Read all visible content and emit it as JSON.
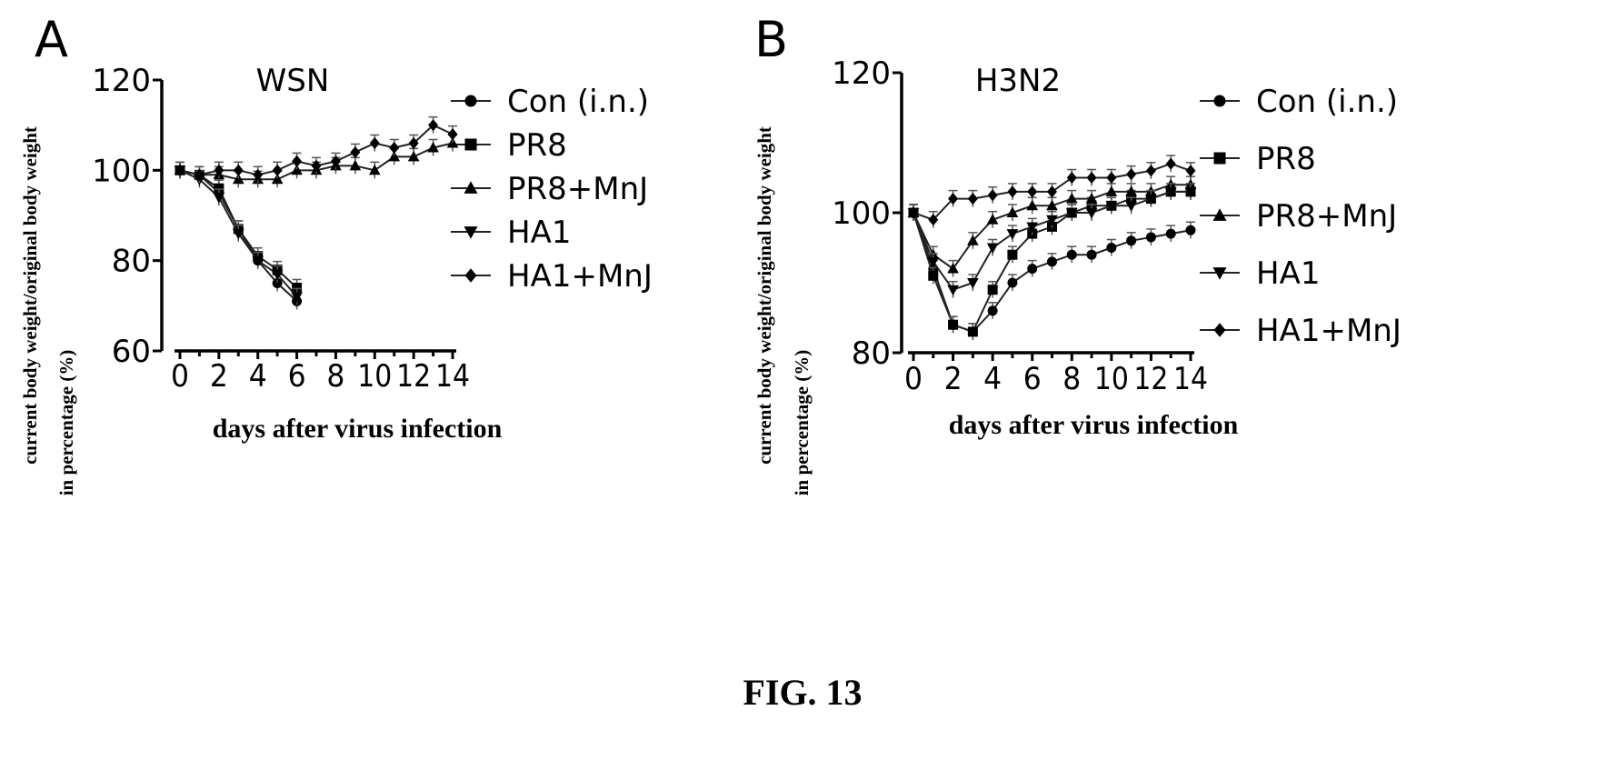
{
  "figure_caption": "FIG. 13",
  "chart_data": [
    {
      "type": "line",
      "panel_label": "A",
      "title": "WSN",
      "xlabel": "days after virus infection",
      "ylabel": [
        "current body weight/original body weight",
        "in percentage (%)"
      ],
      "xlim": [
        0,
        14
      ],
      "ylim": [
        60,
        120
      ],
      "x_ticks": [
        0,
        2,
        4,
        6,
        8,
        10,
        12,
        14
      ],
      "x_tick_labels": [
        "0",
        "2",
        "4",
        "6",
        "8",
        "10",
        "12",
        "14"
      ],
      "y_ticks": [
        60,
        80,
        100,
        120
      ],
      "y_tick_labels": [
        "60",
        "80",
        "100",
        "120"
      ],
      "legend": "right",
      "series": [
        {
          "name": "Con (i.n.)",
          "marker": "circle",
          "x": [
            0,
            1,
            2,
            3,
            4,
            5,
            6
          ],
          "y": [
            100,
            99,
            95,
            87,
            80,
            75,
            71
          ]
        },
        {
          "name": "PR8",
          "marker": "square",
          "x": [
            0,
            1,
            2,
            3,
            4,
            5,
            6
          ],
          "y": [
            100,
            99,
            96,
            87,
            81,
            78,
            74
          ]
        },
        {
          "name": "PR8+MnJ",
          "marker": "triangle-up",
          "x": [
            0,
            1,
            2,
            3,
            4,
            5,
            6,
            7,
            8,
            9,
            10,
            11,
            12,
            13,
            14
          ],
          "y": [
            100,
            99,
            99,
            98,
            98,
            98,
            100,
            100,
            101,
            101,
            100,
            103,
            103,
            105,
            106
          ]
        },
        {
          "name": "HA1",
          "marker": "triangle-down",
          "x": [
            0,
            1,
            2,
            3,
            4,
            5,
            6
          ],
          "y": [
            100,
            98,
            94,
            86,
            80,
            77,
            72
          ]
        },
        {
          "name": "HA1+MnJ",
          "marker": "diamond",
          "x": [
            0,
            1,
            2,
            3,
            4,
            5,
            6,
            7,
            8,
            9,
            10,
            11,
            12,
            13,
            14
          ],
          "y": [
            100,
            99,
            100,
            100,
            99,
            100,
            102,
            101,
            102,
            104,
            106,
            105,
            106,
            110,
            108
          ]
        }
      ]
    },
    {
      "type": "line",
      "panel_label": "B",
      "title": "H3N2",
      "xlabel": "days after virus infection",
      "ylabel": [
        "current body weight/original body weight",
        "in percentage (%)"
      ],
      "xlim": [
        0,
        14
      ],
      "ylim": [
        80,
        120
      ],
      "x_ticks": [
        0,
        2,
        4,
        6,
        8,
        10,
        12,
        14
      ],
      "x_tick_labels": [
        "0",
        "2",
        "4",
        "6",
        "8",
        "10",
        "12",
        "14"
      ],
      "y_ticks": [
        80,
        100,
        120
      ],
      "y_tick_labels": [
        "80",
        "100",
        "120"
      ],
      "legend": "right",
      "series": [
        {
          "name": "Con (i.n.)",
          "marker": "circle",
          "x": [
            0,
            1,
            2,
            3,
            4,
            5,
            6,
            7,
            8,
            9,
            10,
            11,
            12,
            13,
            14
          ],
          "y": [
            100,
            92,
            84,
            83,
            86,
            90,
            92,
            93,
            94,
            94,
            95,
            96,
            96.5,
            97,
            97.5
          ]
        },
        {
          "name": "PR8",
          "marker": "square",
          "x": [
            0,
            1,
            2,
            3,
            4,
            5,
            6,
            7,
            8,
            9,
            10,
            11,
            12,
            13,
            14
          ],
          "y": [
            100,
            91,
            84,
            83,
            89,
            94,
            97,
            98,
            100,
            101,
            101,
            102,
            102,
            103,
            103
          ]
        },
        {
          "name": "PR8+MnJ",
          "marker": "triangle-up",
          "x": [
            0,
            1,
            2,
            3,
            4,
            5,
            6,
            7,
            8,
            9,
            10,
            11,
            12,
            13,
            14
          ],
          "y": [
            100,
            94,
            92,
            96,
            99,
            100,
            101,
            101,
            102,
            102,
            103,
            103,
            103,
            104,
            104
          ]
        },
        {
          "name": "HA1",
          "marker": "triangle-down",
          "x": [
            0,
            1,
            2,
            3,
            4,
            5,
            6,
            7,
            8,
            9,
            10,
            11,
            12,
            13,
            14
          ],
          "y": [
            100,
            93,
            89,
            90,
            95,
            97,
            98,
            99,
            100,
            100,
            101,
            101,
            102,
            103,
            103
          ]
        },
        {
          "name": "HA1+MnJ",
          "marker": "diamond",
          "x": [
            0,
            1,
            2,
            3,
            4,
            5,
            6,
            7,
            8,
            9,
            10,
            11,
            12,
            13,
            14
          ],
          "y": [
            100,
            99,
            102,
            102,
            102.5,
            103,
            103,
            103,
            105,
            105,
            105,
            105.5,
            106,
            107,
            106
          ]
        }
      ]
    }
  ]
}
